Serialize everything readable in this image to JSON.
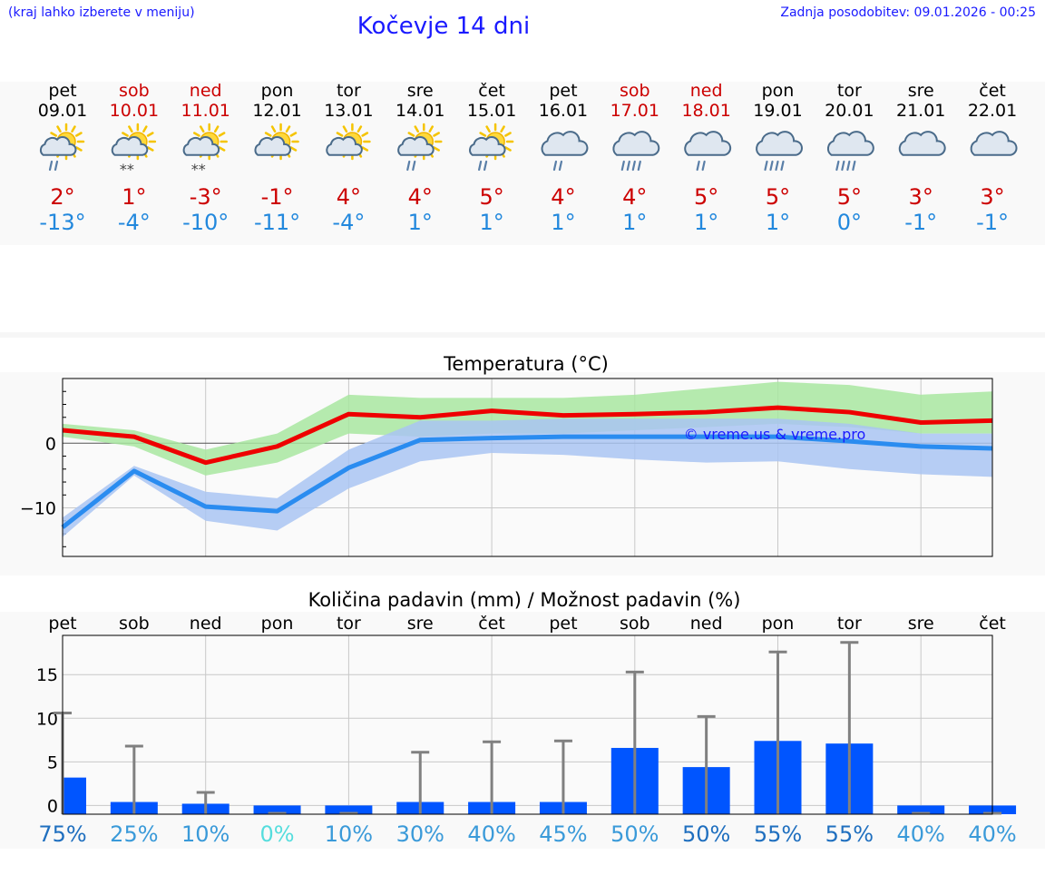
{
  "header": {
    "hint": "(kraj lahko izberete v meniju)",
    "title": "Kočevje 14 dni",
    "updated": "Zadnja posodobitev: 09.01.2026 - 00:25"
  },
  "days": [
    {
      "name": "pet",
      "date": "09.01",
      "weekend": false,
      "icon": "sun-cloud-rain-icon",
      "max": "2°",
      "min": "-13°"
    },
    {
      "name": "sob",
      "date": "10.01",
      "weekend": true,
      "icon": "sun-cloud-snow-icon",
      "max": "1°",
      "min": "-4°"
    },
    {
      "name": "ned",
      "date": "11.01",
      "weekend": true,
      "icon": "sun-cloud-snow-icon",
      "max": "-3°",
      "min": "-10°"
    },
    {
      "name": "pon",
      "date": "12.01",
      "weekend": false,
      "icon": "sun-small-cloud-icon",
      "max": "-1°",
      "min": "-11°"
    },
    {
      "name": "tor",
      "date": "13.01",
      "weekend": false,
      "icon": "sun-cloud-icon",
      "max": "4°",
      "min": "-4°"
    },
    {
      "name": "sre",
      "date": "14.01",
      "weekend": false,
      "icon": "sun-cloud-rain-icon",
      "max": "4°",
      "min": "1°"
    },
    {
      "name": "čet",
      "date": "15.01",
      "weekend": false,
      "icon": "sun-cloud-rain-icon",
      "max": "5°",
      "min": "1°"
    },
    {
      "name": "pet",
      "date": "16.01",
      "weekend": false,
      "icon": "cloud-rain-icon",
      "max": "4°",
      "min": "1°"
    },
    {
      "name": "sob",
      "date": "17.01",
      "weekend": true,
      "icon": "cloud-heavy-rain-icon",
      "max": "4°",
      "min": "1°"
    },
    {
      "name": "ned",
      "date": "18.01",
      "weekend": true,
      "icon": "cloud-rain-icon",
      "max": "5°",
      "min": "1°"
    },
    {
      "name": "pon",
      "date": "19.01",
      "weekend": false,
      "icon": "cloud-heavy-rain-icon",
      "max": "5°",
      "min": "1°"
    },
    {
      "name": "tor",
      "date": "20.01",
      "weekend": false,
      "icon": "cloud-heavy-rain-icon",
      "max": "5°",
      "min": "0°"
    },
    {
      "name": "sre",
      "date": "21.01",
      "weekend": false,
      "icon": "cloud-icon",
      "max": "3°",
      "min": "-1°"
    },
    {
      "name": "čet",
      "date": "22.01",
      "weekend": false,
      "icon": "cloud-icon",
      "max": "3°",
      "min": "-1°"
    }
  ],
  "colors": {
    "max_line": "#ee0000",
    "max_band": "#a8e6a0",
    "min_line": "#2a8cf0",
    "min_band": "#a9c4f2",
    "bar": "#0055ff",
    "whisker": "#808080",
    "grid": "#c8c8c8",
    "brand": "#1a1aff"
  },
  "chart_data": [
    {
      "type": "line",
      "title": "Temperatura (°C)",
      "watermark": "© vreme.us & vreme.pro",
      "ylim": [
        -17.5,
        10
      ],
      "yticks": [
        0,
        -10
      ],
      "ytick_labels": [
        "0",
        "−10"
      ],
      "series": [
        {
          "name": "max",
          "values": [
            2,
            1,
            -3,
            -0.5,
            4.5,
            4,
            5,
            4.3,
            4.5,
            4.8,
            5.5,
            4.8,
            3.2,
            3.5
          ],
          "band_low": [
            1,
            -0.5,
            -5,
            -3,
            1.5,
            1,
            1.5,
            1.5,
            2,
            2.5,
            3,
            2.5,
            1.5,
            1.5
          ],
          "band_high": [
            3,
            2,
            -1,
            1.5,
            7.5,
            7,
            7,
            7,
            7.5,
            8.5,
            9.5,
            9,
            7.5,
            8
          ]
        },
        {
          "name": "min",
          "values": [
            -13,
            -4.3,
            -9.8,
            -10.5,
            -3.8,
            0.5,
            0.8,
            1,
            1,
            1,
            1,
            0.3,
            -0.5,
            -0.8
          ],
          "band_low": [
            -14.5,
            -5,
            -12,
            -13.5,
            -7,
            -2.8,
            -1.5,
            -1.8,
            -2.5,
            -3,
            -2.8,
            -4,
            -4.8,
            -5.2
          ],
          "band_high": [
            -11.5,
            -3.5,
            -7.5,
            -8.5,
            -1,
            3.5,
            3.5,
            3.8,
            3.8,
            3.8,
            3.8,
            3,
            1.5,
            1.5
          ]
        }
      ]
    },
    {
      "type": "bar",
      "title": "Količina padavin (mm) / Možnost padavin (%)",
      "categories": [
        "pet",
        "sob",
        "ned",
        "pon",
        "tor",
        "sre",
        "čet",
        "pet",
        "sob",
        "ned",
        "pon",
        "tor",
        "sre",
        "čet"
      ],
      "ylim": [
        -1,
        19.5
      ],
      "yticks": [
        0,
        5,
        10,
        15
      ],
      "ytick_labels": [
        "0",
        "5",
        "10",
        "15"
      ],
      "values": [
        3.2,
        0.4,
        0.2,
        0,
        0,
        0.4,
        0.4,
        0.4,
        6.6,
        4.4,
        7.4,
        7.1,
        0,
        0
      ],
      "whisker_max": [
        10.6,
        6.8,
        1.5,
        0,
        0,
        6.1,
        7.3,
        7.4,
        15.3,
        10.2,
        17.6,
        18.7,
        0,
        0
      ],
      "chance": [
        "75%",
        "25%",
        "10%",
        "0%",
        "10%",
        "30%",
        "40%",
        "45%",
        "50%",
        "50%",
        "55%",
        "55%",
        "40%",
        "40%"
      ],
      "chance_colors": [
        "#1f6fbf",
        "#3a9ad9",
        "#3a9ad9",
        "#55dddd",
        "#3a9ad9",
        "#3a9ad9",
        "#3a9ad9",
        "#3a9ad9",
        "#3a9ad9",
        "#1f6fbf",
        "#1f6fbf",
        "#1f6fbf",
        "#3a9ad9",
        "#3a9ad9"
      ]
    }
  ]
}
